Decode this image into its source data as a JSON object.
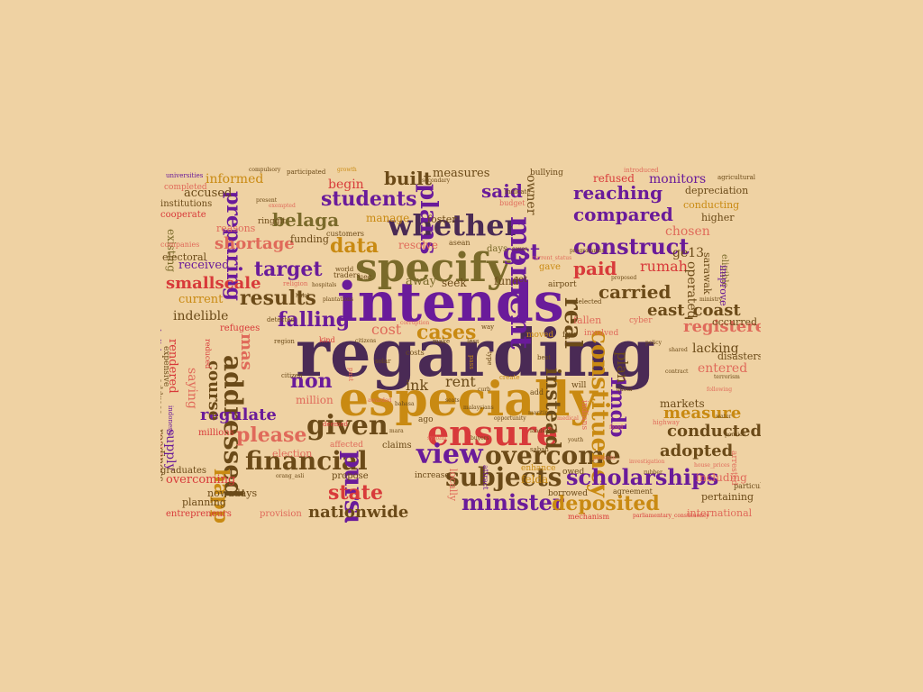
{
  "background_color": "#efd2a3",
  "palette": {
    "dark": "#4a2a55",
    "purple": "#6a1b9a",
    "brown": "#6b4a18",
    "gold": "#c98a12",
    "red": "#d83a3a",
    "salmon": "#e06a5a",
    "olive": "#7a6a2a"
  },
  "words": [
    {
      "text": "regarding",
      "color": "dark",
      "size": 72
    },
    {
      "text": "intends",
      "color": "purple",
      "size": 60
    },
    {
      "text": "especially",
      "color": "gold",
      "size": 52
    },
    {
      "text": "specify",
      "color": "olive",
      "size": 44
    },
    {
      "text": "ensure",
      "color": "red",
      "size": 38
    },
    {
      "text": "whether",
      "color": "dark",
      "size": 32
    },
    {
      "text": "moment",
      "color": "purple",
      "size": 32
    },
    {
      "text": "view",
      "color": "purple",
      "size": 30
    },
    {
      "text": "given",
      "color": "brown",
      "size": 30
    },
    {
      "text": "financial",
      "color": "brown",
      "size": 28
    },
    {
      "text": "pursue",
      "color": "purple",
      "size": 28
    },
    {
      "text": "overcome",
      "color": "brown",
      "size": 28
    },
    {
      "text": "subjects",
      "color": "brown",
      "size": 28
    },
    {
      "text": "addressed",
      "color": "brown",
      "size": 28
    },
    {
      "text": "constituency",
      "color": "gold",
      "size": 26
    },
    {
      "text": "real",
      "color": "brown",
      "size": 26
    },
    {
      "text": "plans",
      "color": "purple",
      "size": 26
    },
    {
      "text": "construct",
      "color": "purple",
      "size": 24
    },
    {
      "text": "scholarships",
      "color": "purple",
      "size": 24
    },
    {
      "text": "minister",
      "color": "purple",
      "size": 24
    },
    {
      "text": "gst",
      "color": "purple",
      "size": 24
    },
    {
      "text": "please",
      "color": "salmon",
      "size": 22
    },
    {
      "text": "students",
      "color": "purple",
      "size": 22
    },
    {
      "text": "preparing",
      "color": "purple",
      "size": 22
    },
    {
      "text": "falling",
      "color": "purple",
      "size": 22
    },
    {
      "text": "results",
      "color": "brown",
      "size": 22
    },
    {
      "text": "cases",
      "color": "gold",
      "size": 22
    },
    {
      "text": "non",
      "color": "purple",
      "size": 22
    },
    {
      "text": "instead",
      "color": "brown",
      "size": 22
    },
    {
      "text": "happens",
      "color": "gold",
      "size": 22
    },
    {
      "text": "state",
      "color": "red",
      "size": 22
    },
    {
      "text": "deposited",
      "color": "gold",
      "size": 22
    },
    {
      "text": "1mdb",
      "color": "purple",
      "size": 22
    },
    {
      "text": "data",
      "color": "gold",
      "size": 22
    },
    {
      "text": "target",
      "color": "purple",
      "size": 22
    },
    {
      "text": "carried",
      "color": "brown",
      "size": 20
    },
    {
      "text": "compared",
      "color": "purple",
      "size": 20
    },
    {
      "text": "reaching",
      "color": "purple",
      "size": 20
    },
    {
      "text": "paid",
      "color": "red",
      "size": 20
    },
    {
      "text": "said",
      "color": "purple",
      "size": 20
    },
    {
      "text": "built",
      "color": "brown",
      "size": 20
    },
    {
      "text": "belaga",
      "color": "olive",
      "size": 20
    },
    {
      "text": "shortage",
      "color": "salmon",
      "size": 18
    },
    {
      "text": "smallscale",
      "color": "red",
      "size": 18
    },
    {
      "text": "regulate",
      "color": "purple",
      "size": 18
    },
    {
      "text": "registered",
      "color": "salmon",
      "size": 18
    },
    {
      "text": "east_coast",
      "color": "brown",
      "size": 18
    },
    {
      "text": "conducted",
      "color": "brown",
      "size": 18
    },
    {
      "text": "adopted",
      "color": "brown",
      "size": 18
    },
    {
      "text": "measure",
      "color": "gold",
      "size": 18
    },
    {
      "text": "nationwide",
      "color": "brown",
      "size": 18
    },
    {
      "text": "course",
      "color": "brown",
      "size": 18
    },
    {
      "text": "mas",
      "color": "salmon",
      "size": 18
    },
    {
      "text": "plan",
      "color": "brown",
      "size": 16
    },
    {
      "text": "rumah",
      "color": "red",
      "size": 16
    },
    {
      "text": "cost",
      "color": "salmon",
      "size": 16
    },
    {
      "text": "rent",
      "color": "brown",
      "size": 16
    },
    {
      "text": "ink",
      "color": "brown",
      "size": 16
    },
    {
      "text": "owner",
      "color": "brown",
      "size": 14
    },
    {
      "text": "ge13",
      "color": "brown",
      "size": 14
    },
    {
      "text": "chosen",
      "color": "salmon",
      "size": 14
    },
    {
      "text": "operated",
      "color": "brown",
      "size": 14
    },
    {
      "text": "lacking",
      "color": "brown",
      "size": 14
    },
    {
      "text": "entered",
      "color": "salmon",
      "size": 14
    },
    {
      "text": "markets",
      "color": "brown",
      "size": 12
    },
    {
      "text": "including",
      "color": "salmon",
      "size": 12
    },
    {
      "text": "monitors",
      "color": "purple",
      "size": 14
    },
    {
      "text": "measures",
      "color": "brown",
      "size": 13
    },
    {
      "text": "informed",
      "color": "gold",
      "size": 14
    },
    {
      "text": "accused",
      "color": "brown",
      "size": 13
    },
    {
      "text": "received",
      "color": "purple",
      "size": 13
    },
    {
      "text": "current",
      "color": "gold",
      "size": 13
    },
    {
      "text": "indelible",
      "color": "brown",
      "size": 14
    },
    {
      "text": "overcoming",
      "color": "red",
      "size": 13
    },
    {
      "text": "supply",
      "color": "purple",
      "size": 14
    },
    {
      "text": "saying",
      "color": "salmon",
      "size": 14
    },
    {
      "text": "rendered",
      "color": "red",
      "size": 13
    },
    {
      "text": "readiness",
      "color": "brown",
      "size": 12
    },
    {
      "text": "million",
      "color": "salmon",
      "size": 12
    },
    {
      "text": "millions",
      "color": "red",
      "size": 10
    },
    {
      "text": "begin",
      "color": "red",
      "size": 14
    },
    {
      "text": "manage",
      "color": "gold",
      "size": 12
    },
    {
      "text": "resolve",
      "color": "salmon",
      "size": 12
    },
    {
      "text": "away",
      "color": "olive",
      "size": 13
    },
    {
      "text": "seek",
      "color": "brown",
      "size": 12
    },
    {
      "text": "fund",
      "color": "brown",
      "size": 12
    },
    {
      "text": "refused",
      "color": "red",
      "size": 12
    },
    {
      "text": "depreciation",
      "color": "brown",
      "size": 11
    },
    {
      "text": "conducting",
      "color": "gold",
      "size": 11
    },
    {
      "text": "higher",
      "color": "brown",
      "size": 11
    },
    {
      "text": "sarawak",
      "color": "brown",
      "size": 11
    },
    {
      "text": "eligible",
      "color": "olive",
      "size": 10
    },
    {
      "text": "improve",
      "color": "purple",
      "size": 11
    },
    {
      "text": "occurred",
      "color": "brown",
      "size": 11
    },
    {
      "text": "disasters",
      "color": "brown",
      "size": 11
    },
    {
      "text": "pertaining",
      "color": "brown",
      "size": 11
    },
    {
      "text": "international",
      "color": "salmon",
      "size": 11
    },
    {
      "text": "arrested",
      "color": "salmon",
      "size": 9
    },
    {
      "text": "particularly",
      "color": "brown",
      "size": 8
    },
    {
      "text": "foster",
      "color": "brown",
      "size": 11
    },
    {
      "text": "days",
      "color": "olive",
      "size": 10
    },
    {
      "text": "gave",
      "color": "gold",
      "size": 10
    },
    {
      "text": "set",
      "color": "brown",
      "size": 10
    },
    {
      "text": "airport",
      "color": "brown",
      "size": 9
    },
    {
      "text": "fallen",
      "color": "salmon",
      "size": 11
    },
    {
      "text": "involved",
      "color": "salmon",
      "size": 9
    },
    {
      "text": "moved",
      "color": "gold",
      "size": 9
    },
    {
      "text": "fgv",
      "color": "brown",
      "size": 9
    },
    {
      "text": "cyber",
      "color": "salmon",
      "size": 9
    },
    {
      "text": "will",
      "color": "brown",
      "size": 9
    },
    {
      "text": "add",
      "color": "brown",
      "size": 8
    },
    {
      "text": "indians",
      "color": "salmon",
      "size": 9
    },
    {
      "text": "ago",
      "color": "brown",
      "size": 9
    },
    {
      "text": "felda",
      "color": "gold",
      "size": 12
    },
    {
      "text": "locally",
      "color": "salmon",
      "size": 11
    },
    {
      "text": "attract",
      "color": "purple",
      "size": 8
    },
    {
      "text": "enhance",
      "color": "gold",
      "size": 9
    },
    {
      "text": "owed",
      "color": "brown",
      "size": 9
    },
    {
      "text": "borrowed",
      "color": "brown",
      "size": 9
    },
    {
      "text": "agreement",
      "color": "brown",
      "size": 8
    },
    {
      "text": "mechanism",
      "color": "red",
      "size": 8
    },
    {
      "text": "parliamentary_constituency",
      "color": "red",
      "size": 6
    },
    {
      "text": "increase",
      "color": "brown",
      "size": 9
    },
    {
      "text": "propose",
      "color": "brown",
      "size": 10
    },
    {
      "text": "claims",
      "color": "brown",
      "size": 10
    },
    {
      "text": "affected",
      "color": "salmon",
      "size": 9
    },
    {
      "text": "election",
      "color": "salmon",
      "size": 11
    },
    {
      "text": "provision",
      "color": "salmon",
      "size": 10
    },
    {
      "text": "graduates",
      "color": "brown",
      "size": 10
    },
    {
      "text": "planning",
      "color": "brown",
      "size": 11
    },
    {
      "text": "nowadays",
      "color": "brown",
      "size": 11
    },
    {
      "text": "entrepreneurs",
      "color": "red",
      "size": 10
    },
    {
      "text": "guidelines",
      "color": "salmon",
      "size": 8
    },
    {
      "text": "indonesia",
      "color": "purple",
      "size": 7
    },
    {
      "text": "address",
      "color": "brown",
      "size": 10
    },
    {
      "text": "expensive",
      "color": "brown",
      "size": 9
    },
    {
      "text": "abolish",
      "color": "purple",
      "size": 9
    },
    {
      "text": "reduced",
      "color": "red",
      "size": 8
    },
    {
      "text": "refugees",
      "color": "red",
      "size": 10
    },
    {
      "text": "detected",
      "color": "brown",
      "size": 7
    },
    {
      "text": "region",
      "color": "brown",
      "size": 7
    },
    {
      "text": "kind",
      "color": "red",
      "size": 8
    },
    {
      "text": "citizen",
      "color": "brown",
      "size": 7
    },
    {
      "text": "past",
      "color": "salmon",
      "size": 7
    },
    {
      "text": "costs",
      "color": "brown",
      "size": 8
    },
    {
      "text": "solar",
      "color": "brown",
      "size": 7
    },
    {
      "text": "make",
      "color": "brown",
      "size": 7
    },
    {
      "text": "less",
      "color": "brown",
      "size": 7
    },
    {
      "text": "best",
      "color": "brown",
      "size": 7
    },
    {
      "text": "type",
      "color": "brown",
      "size": 7
    },
    {
      "text": "pass",
      "color": "gold",
      "size": 7
    },
    {
      "text": "traders",
      "color": "brown",
      "size": 8
    },
    {
      "text": "uec",
      "color": "brown",
      "size": 8
    },
    {
      "text": "world",
      "color": "brown",
      "size": 7
    },
    {
      "text": "religion",
      "color": "salmon",
      "size": 7
    },
    {
      "text": "customers",
      "color": "brown",
      "size": 8
    },
    {
      "text": "reasons",
      "color": "salmon",
      "size": 11
    },
    {
      "text": "funding",
      "color": "brown",
      "size": 11
    },
    {
      "text": "cooperate",
      "color": "red",
      "size": 10
    },
    {
      "text": "completed",
      "color": "salmon",
      "size": 9
    },
    {
      "text": "institutions",
      "color": "brown",
      "size": 10
    },
    {
      "text": "universities",
      "color": "purple",
      "size": 7
    },
    {
      "text": "compulsory",
      "color": "brown",
      "size": 6
    },
    {
      "text": "participated",
      "color": "brown",
      "size": 7
    },
    {
      "text": "growth",
      "color": "gold",
      "size": 6
    },
    {
      "text": "bullying",
      "color": "brown",
      "size": 9
    },
    {
      "text": "introduced",
      "color": "salmon",
      "size": 7
    },
    {
      "text": "agricultural",
      "color": "brown",
      "size": 7
    },
    {
      "text": "ringgit",
      "color": "brown",
      "size": 9
    },
    {
      "text": "existing",
      "color": "olive",
      "size": 12
    },
    {
      "text": "electoral",
      "color": "brown",
      "size": 11
    },
    {
      "text": "companies",
      "color": "salmon",
      "size": 8
    },
    {
      "text": "budget",
      "color": "salmon",
      "size": 8
    },
    {
      "text": "asean",
      "color": "brown",
      "size": 8
    },
    {
      "text": "indicate",
      "color": "brown",
      "size": 7
    },
    {
      "text": "current_status",
      "color": "salmon",
      "size": 6
    },
    {
      "text": "programmes",
      "color": "brown",
      "size": 6
    },
    {
      "text": "selected",
      "color": "brown",
      "size": 7
    },
    {
      "text": "following",
      "color": "salmon",
      "size": 6
    },
    {
      "text": "highway",
      "color": "salmon",
      "size": 7
    },
    {
      "text": "house_prices",
      "color": "salmon",
      "size": 6
    },
    {
      "text": "shared",
      "color": "brown",
      "size": 6
    },
    {
      "text": "orang_asli",
      "color": "brown",
      "size": 6
    },
    {
      "text": "sabah",
      "color": "brown",
      "size": 7
    },
    {
      "text": "curb",
      "color": "brown",
      "size": 6
    },
    {
      "text": "corruption",
      "color": "salmon",
      "size": 6
    },
    {
      "text": "deemed",
      "color": "red",
      "size": 7
    },
    {
      "text": "present",
      "color": "brown",
      "size": 6
    },
    {
      "text": "exempted",
      "color": "salmon",
      "size": 6
    },
    {
      "text": "secondary",
      "color": "brown",
      "size": 6
    },
    {
      "text": "cause",
      "color": "brown",
      "size": 6
    },
    {
      "text": "proposed",
      "color": "brown",
      "size": 6
    },
    {
      "text": "patients",
      "color": "salmon",
      "size": 6
    },
    {
      "text": "create",
      "color": "gold",
      "size": 7
    },
    {
      "text": "way",
      "color": "brown",
      "size": 7
    },
    {
      "text": "halal",
      "color": "brown",
      "size": 6
    },
    {
      "text": "hospitals",
      "color": "brown",
      "size": 6
    },
    {
      "text": "plantations",
      "color": "brown",
      "size": 6
    },
    {
      "text": "citizens",
      "color": "brown",
      "size": 6
    },
    {
      "text": "awarded",
      "color": "salmon",
      "size": 6
    },
    {
      "text": "bahasa",
      "color": "brown",
      "size": 6
    },
    {
      "text": "mara",
      "color": "brown",
      "size": 6
    },
    {
      "text": "seats",
      "color": "brown",
      "size": 6
    },
    {
      "text": "malaysians",
      "color": "brown",
      "size": 6
    },
    {
      "text": "opportunity",
      "color": "brown",
      "size": 6
    },
    {
      "text": "system",
      "color": "salmon",
      "size": 6
    },
    {
      "text": "buyers",
      "color": "brown",
      "size": 6
    },
    {
      "text": "landslides",
      "color": "brown",
      "size": 6
    },
    {
      "text": "medical",
      "color": "salmon",
      "size": 6
    },
    {
      "text": "maritime",
      "color": "brown",
      "size": 6
    },
    {
      "text": "youth",
      "color": "brown",
      "size": 6
    },
    {
      "text": "investigation",
      "color": "salmon",
      "size": 6
    },
    {
      "text": "policy",
      "color": "brown",
      "size": 6
    },
    {
      "text": "quota",
      "color": "brown",
      "size": 6
    },
    {
      "text": "terrorism",
      "color": "brown",
      "size": 6
    },
    {
      "text": "rubber",
      "color": "brown",
      "size": 6
    },
    {
      "text": "flood",
      "color": "salmon",
      "size": 6
    },
    {
      "text": "water",
      "color": "brown",
      "size": 6
    },
    {
      "text": "pension",
      "color": "brown",
      "size": 6
    },
    {
      "text": "ministry",
      "color": "brown",
      "size": 6
    },
    {
      "text": "contract",
      "color": "brown",
      "size": 6
    }
  ]
}
